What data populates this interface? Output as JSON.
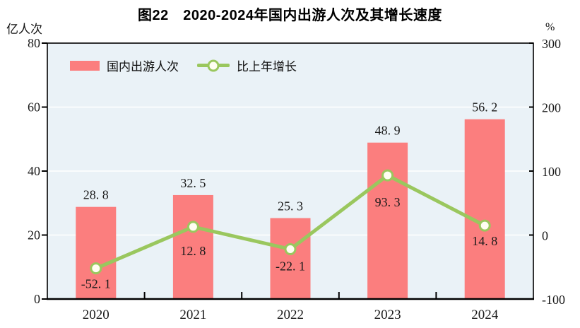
{
  "title": "图22　2020-2024年国内出游人次及其增长速度",
  "left_axis": {
    "unit": "亿人次",
    "range": [
      0,
      80
    ],
    "ticks": [
      0,
      20,
      40,
      60,
      80
    ]
  },
  "right_axis": {
    "unit": "%",
    "range": [
      -100,
      300
    ],
    "ticks": [
      -100,
      0,
      100,
      200,
      300
    ]
  },
  "legend": [
    {
      "label": "国内出游人次",
      "type": "bar",
      "color": "#fb7e7e"
    },
    {
      "label": "比上年增长",
      "type": "line",
      "color": "#9ac75e"
    }
  ],
  "colors": {
    "bar": "#fb7e7e",
    "line": "#9ac75e",
    "marker_fill": "#fffef2",
    "plot_bg": "#eaf2f7",
    "grid": "#ffffff",
    "axis": "#000000"
  },
  "chart_data": {
    "type": "bar",
    "subtype": "bar+line dual-axis",
    "title": "图22　2020-2024年国内出游人次及其增长速度",
    "categories": [
      "2020",
      "2021",
      "2022",
      "2023",
      "2024"
    ],
    "series": [
      {
        "name": "国内出游人次",
        "type": "bar",
        "axis": "left",
        "values": [
          28.8,
          32.5,
          25.3,
          48.9,
          56.2
        ],
        "labels": [
          "28. 8",
          "32. 5",
          "25. 3",
          "48. 9",
          "56. 2"
        ],
        "color": "#fb7e7e"
      },
      {
        "name": "比上年增长",
        "type": "line",
        "axis": "right",
        "values": [
          -52.1,
          12.8,
          -22.1,
          93.3,
          14.8
        ],
        "labels": [
          "-52. 1",
          "12. 8",
          "-22. 1",
          "93. 3",
          "14. 8"
        ],
        "color": "#9ac75e"
      }
    ],
    "ylabel_left": "亿人次",
    "ylabel_right": "%",
    "ylim_left": [
      0,
      80
    ],
    "ylim_right": [
      -100,
      300
    ],
    "yticks_left": [
      0,
      20,
      40,
      60,
      80
    ],
    "yticks_right": [
      -100,
      0,
      100,
      200,
      300
    ],
    "grid": true,
    "grid_color": "#ffffff",
    "plot_background": "#eaf2f7",
    "legend_position": "top-left-inside"
  }
}
